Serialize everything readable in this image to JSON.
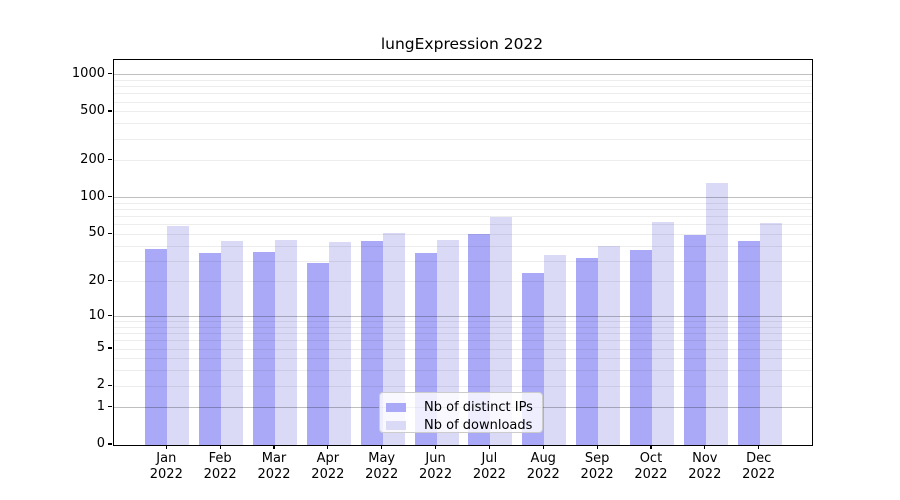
{
  "title": "lungExpression 2022",
  "legend": {
    "items": [
      {
        "label": "Nb of distinct IPs",
        "color": "#a9a9f7"
      },
      {
        "label": "Nb of downloads",
        "color": "#dadaf7"
      }
    ],
    "position": "lower center"
  },
  "chart_data": {
    "type": "bar",
    "title": "lungExpression 2022",
    "categories": [
      "Jan",
      "Feb",
      "Mar",
      "Apr",
      "May",
      "Jun",
      "Jul",
      "Aug",
      "Sep",
      "Oct",
      "Nov",
      "Dec"
    ],
    "x_sublabel": "2022",
    "series": [
      {
        "name": "Nb of distinct IPs",
        "color": "#a9a9f7",
        "values": [
          38,
          35,
          36,
          29,
          44,
          35,
          50,
          24,
          32,
          37,
          49,
          44
        ]
      },
      {
        "name": "Nb of downloads",
        "color": "#dadaf7",
        "values": [
          59,
          44,
          45,
          43,
          51,
          45,
          70,
          34,
          40,
          63,
          131,
          62
        ]
      }
    ],
    "yscale": "log1p",
    "ylim": [
      0,
      1320
    ],
    "yticks": [
      0,
      1,
      2,
      5,
      10,
      20,
      50,
      100,
      200,
      500,
      1000
    ],
    "major_gridlines": [
      1,
      10,
      100,
      1000
    ],
    "minor_gridlines": [
      2,
      3,
      4,
      5,
      6,
      7,
      8,
      9,
      20,
      30,
      40,
      50,
      60,
      70,
      80,
      90,
      200,
      300,
      400,
      500,
      600,
      700,
      800,
      900
    ],
    "grid": true,
    "legend_position": "lower center"
  },
  "colors": {
    "axis": "#000000",
    "text": "#000000",
    "major_grid": "rgba(0,0,0,0.25)",
    "minor_grid": "rgba(0,0,0,0.07)"
  }
}
